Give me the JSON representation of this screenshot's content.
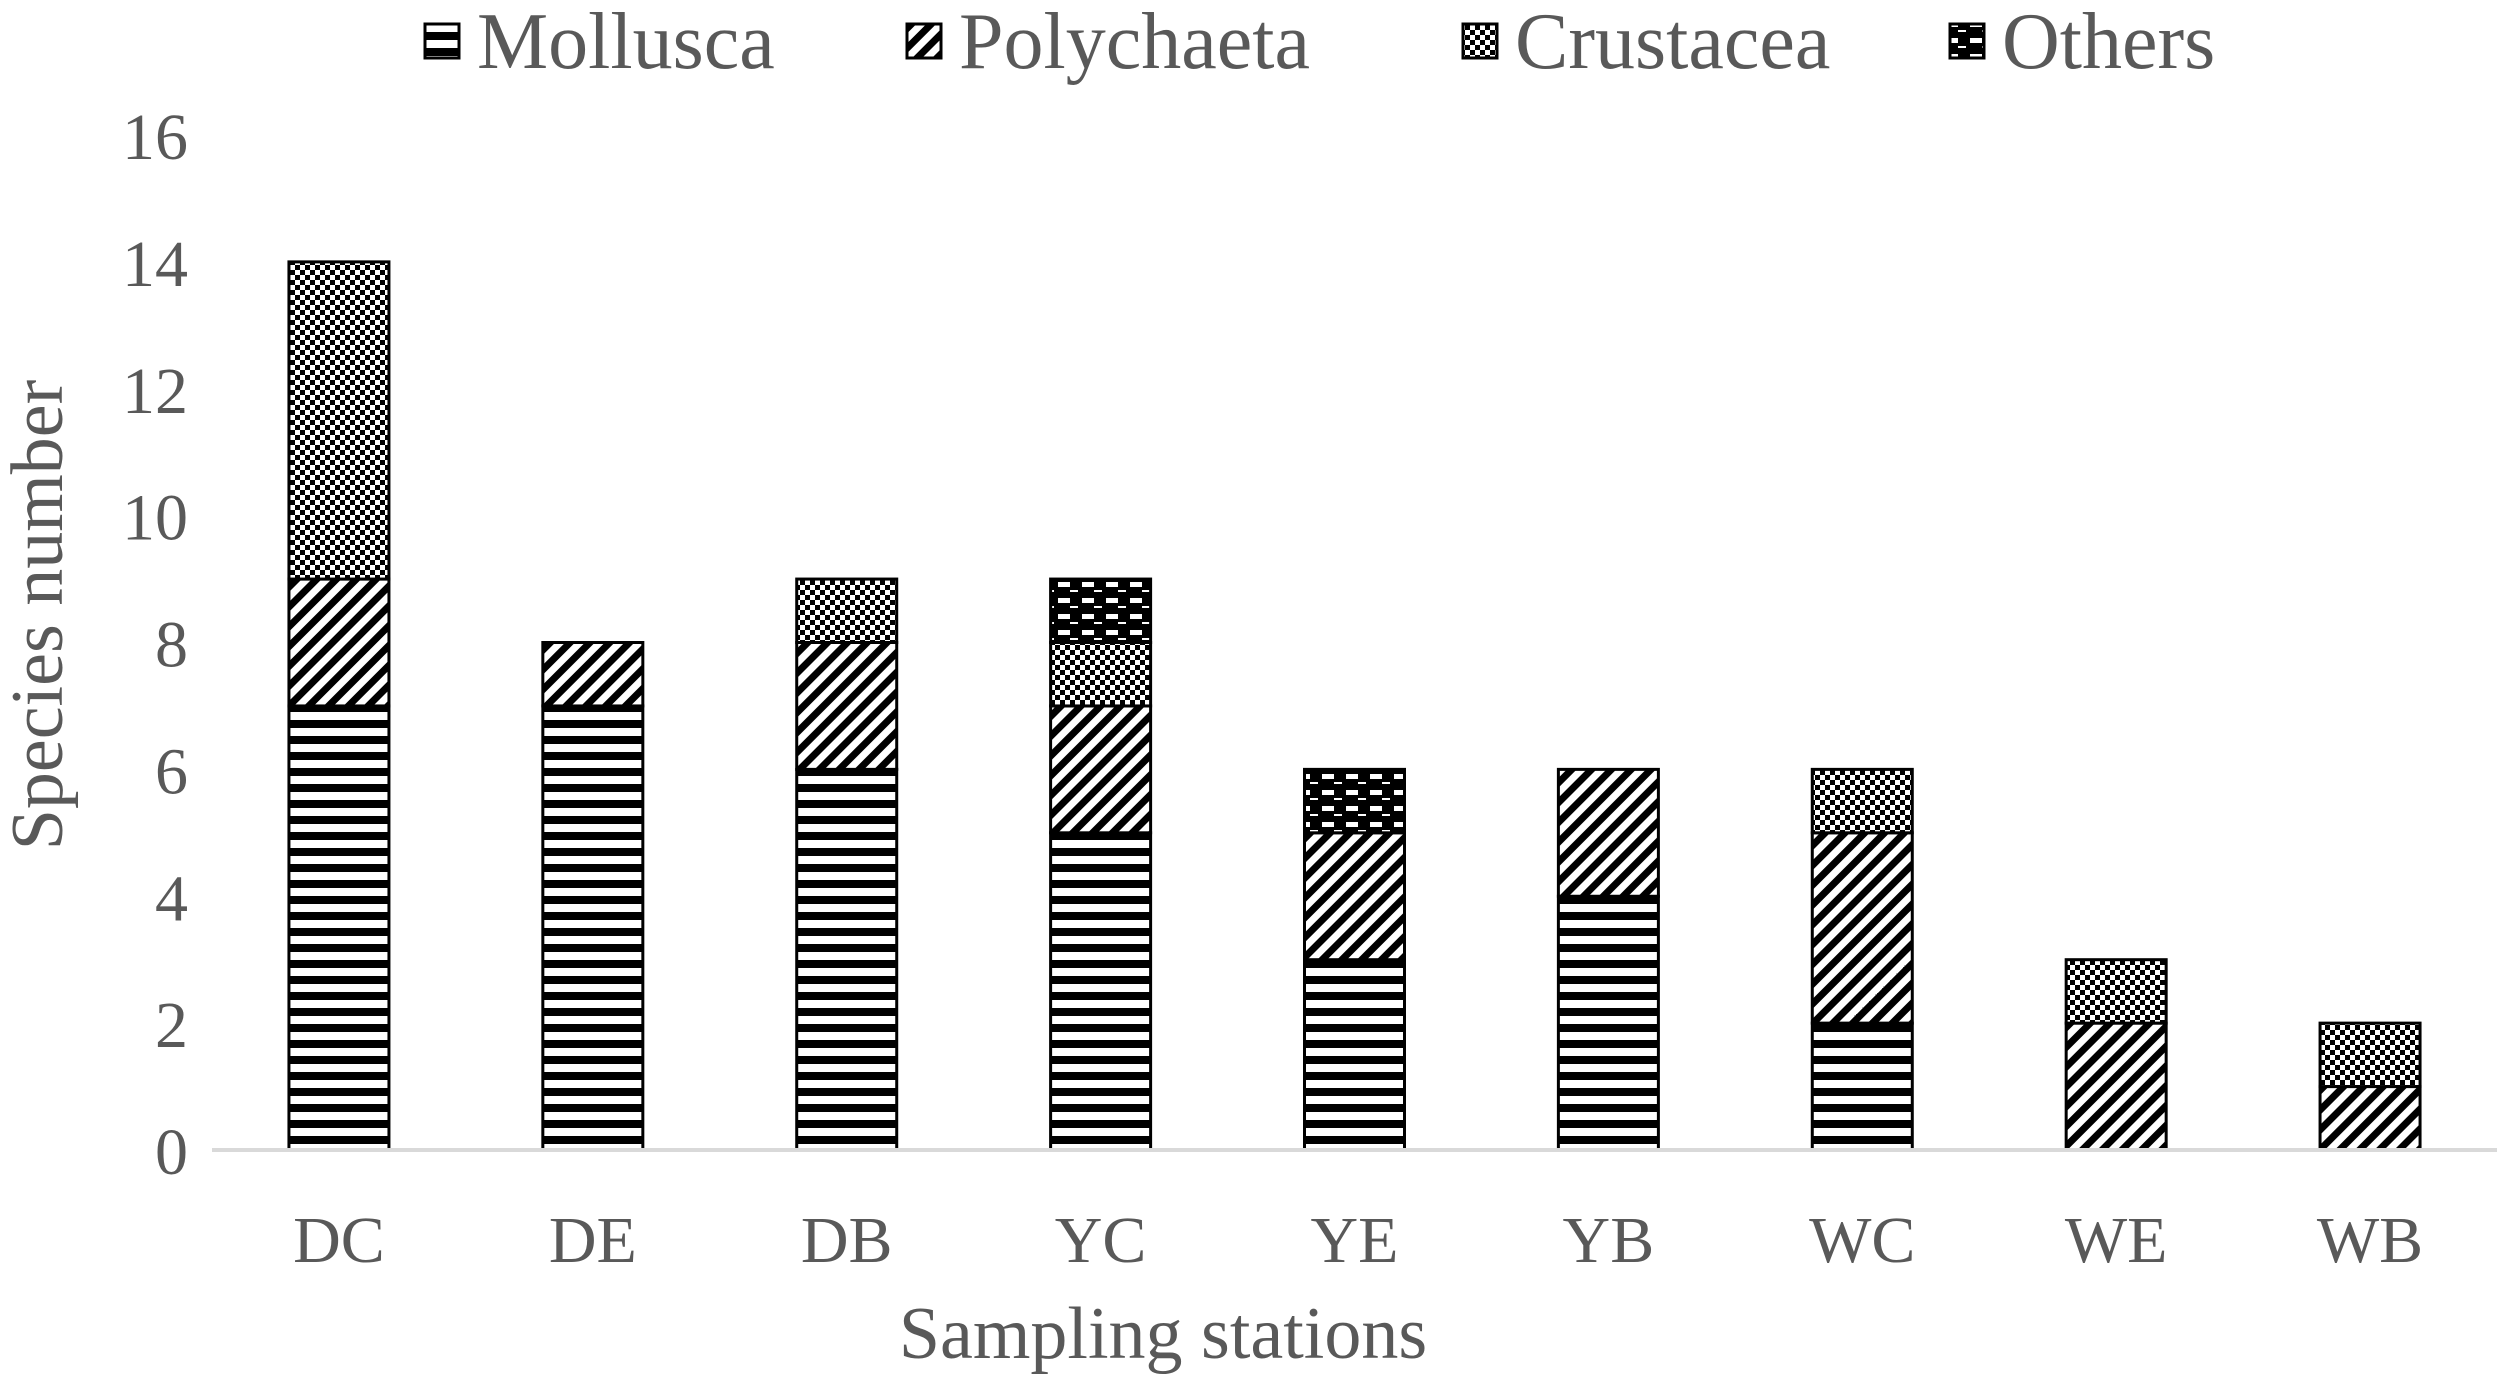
{
  "chart_data": {
    "type": "bar",
    "stacked": true,
    "title": "",
    "xlabel": "Sampling stations",
    "ylabel": "Species number",
    "ylim": [
      0,
      16
    ],
    "yticks": [
      "0",
      "2",
      "4",
      "6",
      "8",
      "10",
      "12",
      "14",
      "16"
    ],
    "grid": false,
    "legend_position": "top",
    "categories": [
      "DC",
      "DE",
      "DB",
      "YC",
      "YE",
      "YB",
      "WC",
      "WE",
      "WB"
    ],
    "series": [
      {
        "name": "Mollusca",
        "pattern": "horizontal-stripes",
        "values": [
          7,
          7,
          6,
          5,
          3,
          4,
          2,
          0,
          0
        ]
      },
      {
        "name": "Polychaeta",
        "pattern": "diagonal-stripes",
        "values": [
          2,
          1,
          2,
          2,
          2,
          2,
          3,
          2,
          1
        ]
      },
      {
        "name": "Crustacea",
        "pattern": "checkerboard",
        "values": [
          5,
          0,
          1,
          1,
          0,
          0,
          1,
          1,
          1
        ]
      },
      {
        "name": "Others",
        "pattern": "dashes",
        "values": [
          0,
          0,
          0,
          1,
          1,
          0,
          0,
          0,
          0
        ]
      }
    ],
    "colors": {
      "ink": "#000000",
      "text": "#595959",
      "axis": "#d9d9d9"
    }
  }
}
